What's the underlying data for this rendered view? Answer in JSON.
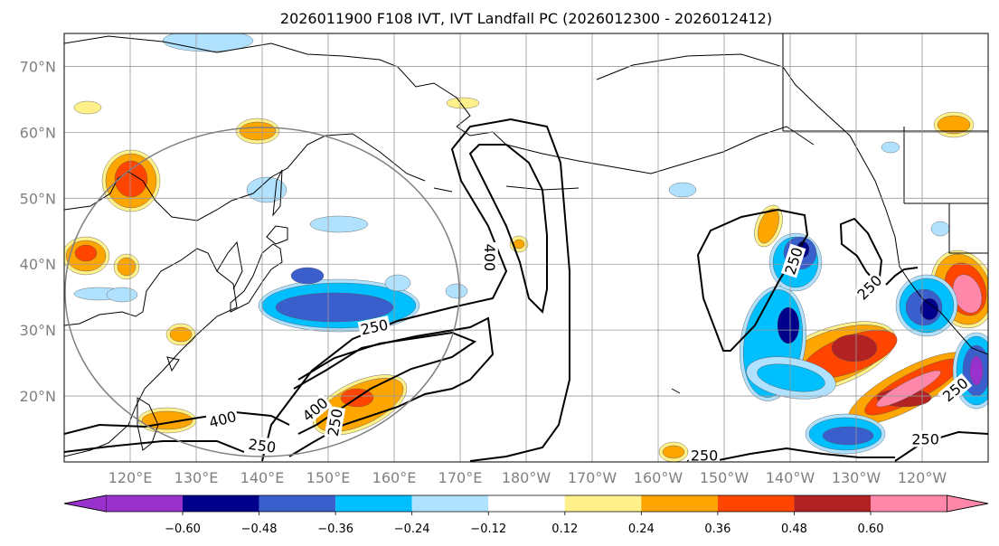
{
  "title": "2026011900 F108 IVT, IVT Landfall PC (2026012300 - 2026012412)",
  "chart_data": {
    "type": "map-contour",
    "projection": "cylindrical",
    "lon_range_east": [
      110,
      250
    ],
    "lat_range": [
      10,
      75
    ],
    "grid": true,
    "x_tick_labels": [
      "120°E",
      "130°E",
      "140°E",
      "150°E",
      "160°E",
      "170°E",
      "180°W",
      "170°W",
      "160°W",
      "150°W",
      "140°W",
      "130°W",
      "120°W"
    ],
    "y_tick_labels": [
      "20°N",
      "30°N",
      "40°N",
      "50°N",
      "60°N",
      "70°N"
    ],
    "y_tick_values": [
      20,
      30,
      40,
      50,
      60,
      70
    ],
    "colorbar": {
      "orientation": "horizontal",
      "extend": "both",
      "levels": [
        -0.6,
        -0.48,
        -0.36,
        -0.24,
        -0.12,
        0.12,
        0.24,
        0.36,
        0.48,
        0.6
      ],
      "tick_labels": [
        "−0.60",
        "−0.48",
        "−0.36",
        "−0.24",
        "−0.12",
        "0.12",
        "0.24",
        "0.36",
        "0.48",
        "0.60"
      ],
      "colors": [
        "#9932cc",
        "#00008b",
        "#3a5fcd",
        "#00bfff",
        "#b0e2ff",
        "#ffffff",
        "#fff08a",
        "#ffa500",
        "#ff4500",
        "#b22222",
        "#ff88aa"
      ]
    },
    "ivt_contour_levels": [
      250,
      400
    ],
    "contour_labels": [
      {
        "text": "250",
        "lon": 157,
        "lat": 30.5,
        "rot": -12
      },
      {
        "text": "250",
        "lon": 140,
        "lat": 12.5,
        "rot": 8
      },
      {
        "text": "250",
        "lon": 151,
        "lat": 16,
        "rot": -80
      },
      {
        "text": "400",
        "lon": 134,
        "lat": 16.5,
        "rot": -15
      },
      {
        "text": "400",
        "lon": 148,
        "lat": 18,
        "rot": -40
      },
      {
        "text": "400",
        "lon": 174.5,
        "lat": 41,
        "rot": 90
      },
      {
        "text": "250",
        "lon": 220.5,
        "lat": 40.5,
        "rot": -72
      },
      {
        "text": "250",
        "lon": 232,
        "lat": 36.5,
        "rot": -45
      },
      {
        "text": "250",
        "lon": 207,
        "lat": 11,
        "rot": 0
      },
      {
        "text": "250",
        "lon": 240.5,
        "lat": 13.5,
        "rot": 0
      },
      {
        "text": "250",
        "lon": 245,
        "lat": 21,
        "rot": -40
      }
    ],
    "annotations": [
      "gray circle centred near 135°E 40°N marking landfall principal component domain"
    ]
  }
}
